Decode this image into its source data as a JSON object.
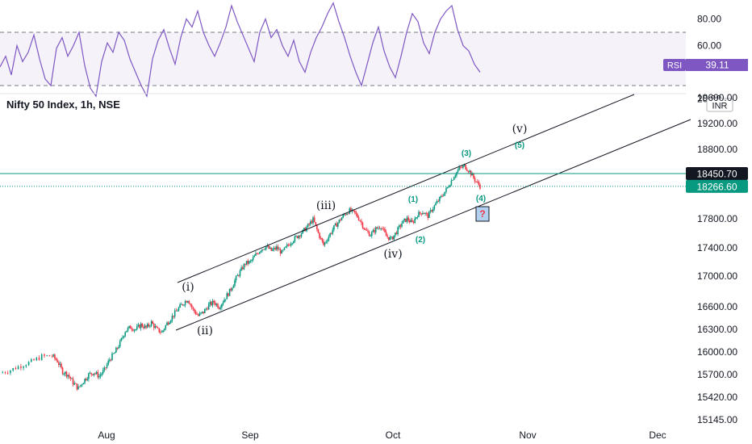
{
  "chart_data": [
    {
      "type": "line",
      "panel": "rsi",
      "series": [
        {
          "name": "RSI",
          "color": "#7e57c2"
        }
      ],
      "upper_band": 70,
      "lower_band": 30,
      "y_ticks": [
        "100.00",
        "80.00",
        "60.00",
        "20.00"
      ],
      "badge": {
        "label": "RSI",
        "value": "39.11",
        "color": "#7e57c2"
      },
      "values": [
        44,
        52,
        38,
        60,
        48,
        55,
        68,
        50,
        35,
        30,
        58,
        66,
        52,
        60,
        70,
        45,
        28,
        22,
        48,
        62,
        55,
        70,
        64,
        50,
        40,
        30,
        22,
        50,
        64,
        72,
        58,
        46,
        66,
        80,
        74,
        86,
        70,
        60,
        52,
        62,
        74,
        90,
        78,
        68,
        58,
        48,
        70,
        80,
        66,
        72,
        60,
        52,
        64,
        48,
        40,
        55,
        66,
        74,
        84,
        92,
        78,
        66,
        52,
        40,
        30,
        46,
        62,
        74,
        56,
        44,
        36,
        52,
        70,
        84,
        78,
        62,
        54,
        70,
        80,
        86,
        90,
        72,
        60,
        56,
        46,
        40
      ]
    },
    {
      "type": "candlestick",
      "panel": "price",
      "title": "Nifty 50 Index, 1h, NSE",
      "currency": "INR",
      "x_ticks": [
        "Aug",
        "Sep",
        "Oct",
        "Nov",
        "Dec"
      ],
      "y_ticks": [
        "19600.00",
        "19200.00",
        "18800.00",
        "17800.00",
        "17400.00",
        "17000.00",
        "16600.00",
        "16300.00",
        "16000.00",
        "15700.00",
        "15420.00",
        "15145.00"
      ],
      "close_path": [
        [
          0,
          15720
        ],
        [
          2,
          15760
        ],
        [
          4,
          15820
        ],
        [
          6,
          15870
        ],
        [
          8,
          15940
        ],
        [
          10,
          15950
        ],
        [
          11,
          15880
        ],
        [
          12,
          15740
        ],
        [
          13,
          15700
        ],
        [
          14,
          15600
        ],
        [
          15,
          15530
        ],
        [
          16,
          15620
        ],
        [
          17,
          15700
        ],
        [
          18,
          15730
        ],
        [
          19,
          15680
        ],
        [
          20,
          15760
        ],
        [
          21,
          15900
        ],
        [
          22,
          15990
        ],
        [
          23,
          16120
        ],
        [
          24,
          16280
        ],
        [
          25,
          16330
        ],
        [
          26,
          16300
        ],
        [
          27,
          16360
        ],
        [
          28,
          16320
        ],
        [
          29,
          16390
        ],
        [
          30,
          16300
        ],
        [
          31,
          16260
        ],
        [
          32,
          16380
        ],
        [
          33,
          16470
        ],
        [
          34,
          16560
        ],
        [
          35,
          16640
        ],
        [
          36,
          16700
        ],
        [
          37,
          16560
        ],
        [
          38,
          16480
        ],
        [
          39,
          16530
        ],
        [
          40,
          16620
        ],
        [
          41,
          16660
        ],
        [
          42,
          16600
        ],
        [
          43,
          16700
        ],
        [
          44,
          16800
        ],
        [
          45,
          16940
        ],
        [
          46,
          17060
        ],
        [
          47,
          17180
        ],
        [
          48,
          17200
        ],
        [
          49,
          17300
        ],
        [
          50,
          17380
        ],
        [
          51,
          17420
        ],
        [
          52,
          17360
        ],
        [
          53,
          17400
        ],
        [
          54,
          17330
        ],
        [
          55,
          17420
        ],
        [
          56,
          17500
        ],
        [
          57,
          17560
        ],
        [
          58,
          17620
        ],
        [
          59,
          17700
        ],
        [
          60,
          17790
        ],
        [
          61,
          17600
        ],
        [
          62,
          17440
        ],
        [
          63,
          17560
        ],
        [
          64,
          17680
        ],
        [
          65,
          17770
        ],
        [
          66,
          17860
        ],
        [
          67,
          17920
        ],
        [
          68,
          17880
        ],
        [
          69,
          17780
        ],
        [
          70,
          17640
        ],
        [
          71,
          17580
        ],
        [
          72,
          17660
        ],
        [
          73,
          17700
        ],
        [
          74,
          17560
        ],
        [
          75,
          17520
        ],
        [
          76,
          17620
        ],
        [
          77,
          17740
        ],
        [
          78,
          17800
        ],
        [
          79,
          17740
        ],
        [
          80,
          17860
        ],
        [
          81,
          17900
        ],
        [
          82,
          17840
        ],
        [
          83,
          17960
        ],
        [
          84,
          18060
        ],
        [
          85,
          18160
        ],
        [
          86,
          18280
        ],
        [
          87,
          18420
        ],
        [
          88,
          18520
        ],
        [
          89,
          18560
        ],
        [
          90,
          18480
        ],
        [
          91,
          18360
        ],
        [
          92,
          18266
        ]
      ],
      "current_price": {
        "value": 18266.6,
        "label": "18266.60",
        "color": "#089981"
      },
      "level_line": {
        "value": 18450.7,
        "label": "18450.70",
        "color": "#089981"
      },
      "channel": {
        "lower": [
          [
            46,
            16350
          ],
          [
            121,
            18500
          ]
        ],
        "upper": [
          [
            46,
            17000
          ],
          [
            172,
            19600
          ]
        ]
      },
      "waves_major": [
        {
          "label": "(i)",
          "day": 50,
          "price": 16930
        },
        {
          "label": "(ii)",
          "day": 55,
          "price": 16310
        },
        {
          "label": "(iii)",
          "day": 91,
          "price": 17880
        },
        {
          "label": "(iv)",
          "day": 107,
          "price": 17340
        },
        {
          "label": "(v)",
          "day": 142,
          "price": 19260
        }
      ],
      "waves_minor": [
        {
          "label": "(1)",
          "day": 112,
          "price": 17980
        },
        {
          "label": "(2)",
          "day": 115,
          "price": 17510
        },
        {
          "label": "(3)",
          "day": 127,
          "price": 18670
        },
        {
          "label": "(4)",
          "day": 131,
          "price": 18010
        },
        {
          "label": "(5)",
          "day": 142,
          "price": 18880
        }
      ],
      "question_box": {
        "label": "?",
        "day": 132,
        "price": 17800
      }
    }
  ]
}
